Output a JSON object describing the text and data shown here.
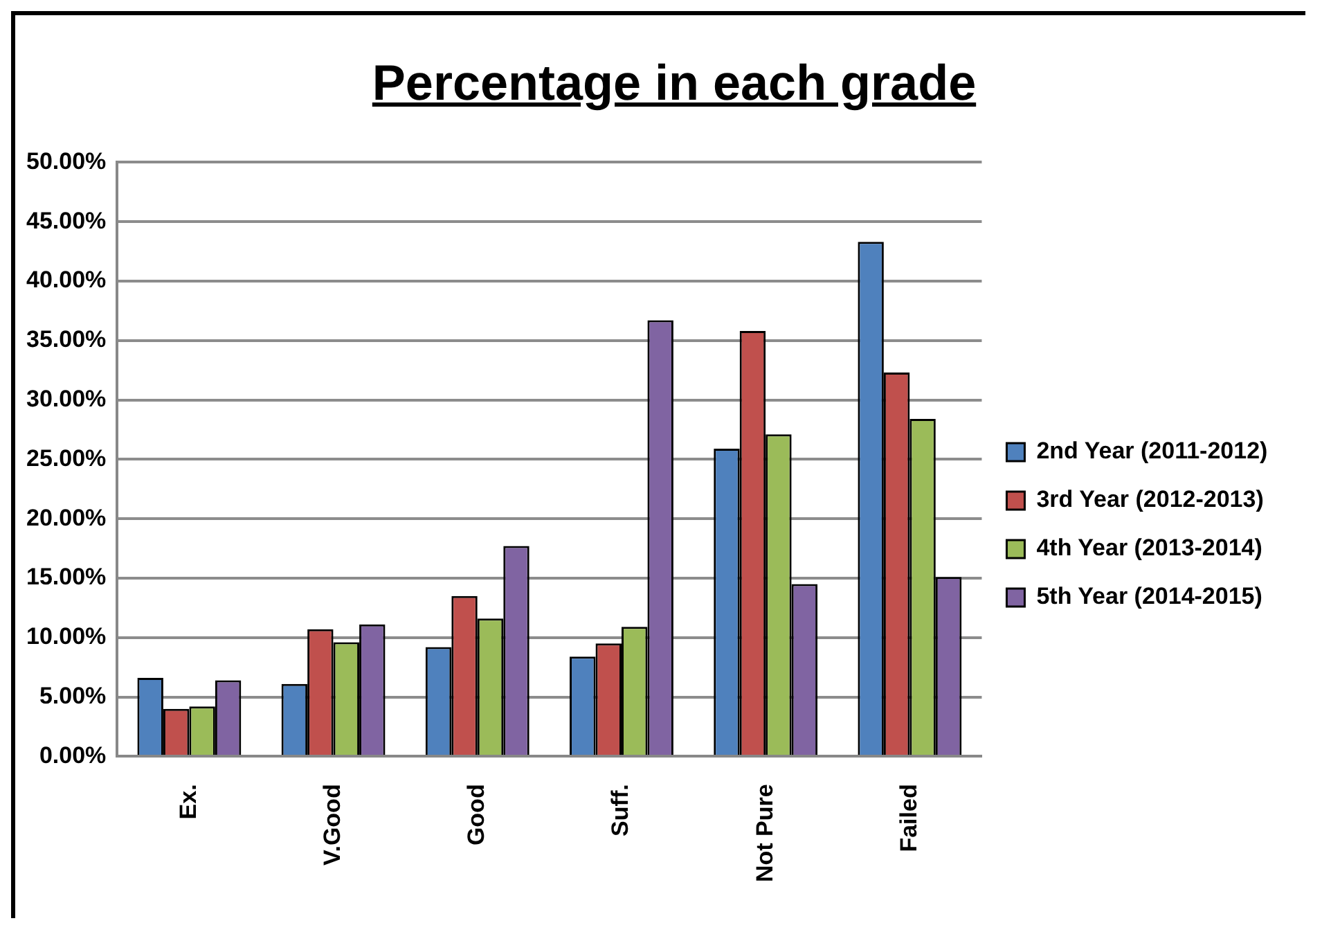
{
  "chart_data": {
    "type": "bar",
    "title": "Percentage in each grade",
    "categories": [
      "Ex.",
      "V.Good",
      "Good",
      "Suff.",
      "Not Pure",
      "Failed"
    ],
    "series": [
      {
        "name": "2nd Year (2011-2012)",
        "color": "#4f81bd",
        "values": [
          6.6,
          6.1,
          9.2,
          8.4,
          25.9,
          43.3
        ]
      },
      {
        "name": "3rd Year (2012-2013)",
        "color": "#c0504d",
        "values": [
          4.0,
          10.7,
          13.5,
          9.5,
          35.8,
          32.3
        ]
      },
      {
        "name": "4th Year (2013-2014)",
        "color": "#9bbb59",
        "values": [
          4.2,
          9.6,
          11.6,
          10.9,
          27.1,
          28.4
        ]
      },
      {
        "name": "5th Year (2014-2015)",
        "color": "#8064a2",
        "values": [
          6.4,
          11.1,
          17.7,
          36.7,
          14.5,
          15.1
        ]
      }
    ],
    "ylim": [
      0,
      50
    ],
    "yticks": [
      {
        "value": 0,
        "label": "0.00%"
      },
      {
        "value": 5,
        "label": "5.00%"
      },
      {
        "value": 10,
        "label": "10.00%"
      },
      {
        "value": 15,
        "label": "15.00%"
      },
      {
        "value": 20,
        "label": "20.00%"
      },
      {
        "value": 25,
        "label": "25.00%"
      },
      {
        "value": 30,
        "label": "30.00%"
      },
      {
        "value": 35,
        "label": "35.00%"
      },
      {
        "value": 40,
        "label": "40.00%"
      },
      {
        "value": 45,
        "label": "45.00%"
      },
      {
        "value": 50,
        "label": "50.00%"
      }
    ],
    "grid": "y",
    "legend": "right"
  }
}
